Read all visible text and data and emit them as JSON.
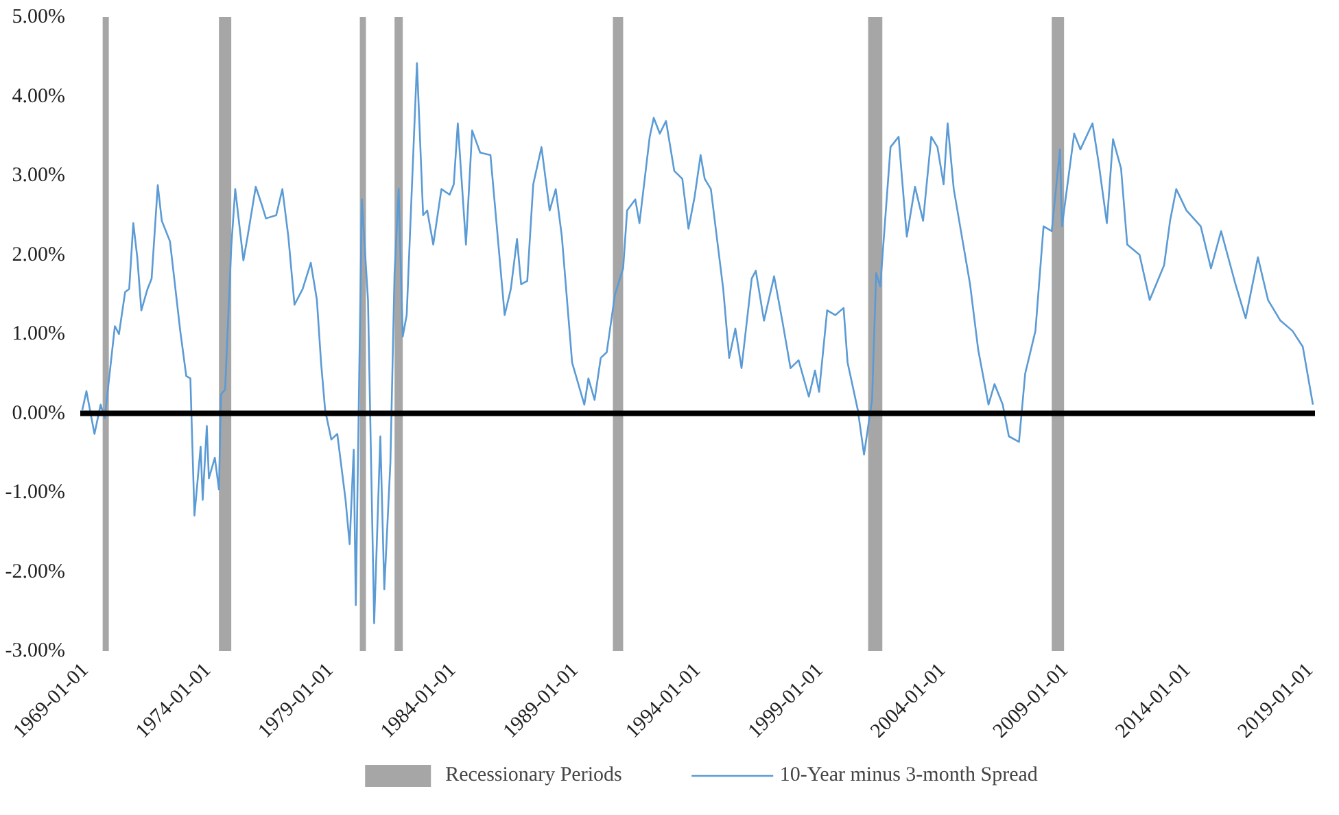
{
  "chart_data": {
    "type": "line",
    "x": [
      "1968-12",
      "1969-02",
      "1969-06",
      "1969-09",
      "1969-11",
      "1970-04",
      "1970-06",
      "1970-09",
      "1970-11",
      "1971-01",
      "1971-03",
      "1971-05",
      "1971-08",
      "1971-10",
      "1972-01",
      "1972-03",
      "1972-07",
      "1972-12",
      "1973-03",
      "1973-05",
      "1973-07",
      "1973-10",
      "1973-11",
      "1974-01",
      "1974-02",
      "1974-05",
      "1974-07",
      "1974-08",
      "1974-10",
      "1975-01",
      "1975-03",
      "1975-07",
      "1975-09",
      "1976-01",
      "1976-04",
      "1976-06",
      "1976-11",
      "1977-02",
      "1977-05",
      "1977-08",
      "1977-12",
      "1978-04",
      "1978-07",
      "1978-09",
      "1978-11",
      "1979-02",
      "1979-05",
      "1979-09",
      "1979-11",
      "1980-01",
      "1980-02",
      "1980-05",
      "1980-08",
      "1980-11",
      "1981-02",
      "1981-04",
      "1981-07",
      "1981-09",
      "1981-11",
      "1982-01",
      "1982-03",
      "1982-08",
      "1982-11",
      "1983-01",
      "1983-04",
      "1983-08",
      "1983-12",
      "1984-02",
      "1984-04",
      "1984-08",
      "1984-11",
      "1985-03",
      "1985-08",
      "1986-03",
      "1986-06",
      "1986-09",
      "1986-11",
      "1987-02",
      "1987-05",
      "1987-09",
      "1988-01",
      "1988-04",
      "1988-07",
      "1988-12",
      "1989-06",
      "1989-08",
      "1989-11",
      "1990-02",
      "1990-05",
      "1990-09",
      "1991-01",
      "1991-03",
      "1991-07",
      "1991-09",
      "1992-02",
      "1992-04",
      "1992-07",
      "1992-10",
      "1993-02",
      "1993-06",
      "1993-09",
      "1993-12",
      "1994-03",
      "1994-05",
      "1994-08",
      "1995-02",
      "1995-05",
      "1995-08",
      "1995-11",
      "1996-04",
      "1996-06",
      "1996-10",
      "1997-03",
      "1997-07",
      "1997-11",
      "1998-03",
      "1998-08",
      "1998-11",
      "1999-01",
      "1999-05",
      "1999-09",
      "2000-01",
      "2000-03",
      "2000-08",
      "2000-11",
      "2001-03",
      "2001-05",
      "2001-07",
      "2001-12",
      "2002-04",
      "2002-08",
      "2002-12",
      "2003-04",
      "2003-08",
      "2003-11",
      "2004-02",
      "2004-04",
      "2004-07",
      "2005-03",
      "2005-07",
      "2005-12",
      "2006-03",
      "2006-07",
      "2006-10",
      "2007-03",
      "2007-06",
      "2007-11",
      "2008-03",
      "2008-07",
      "2008-11",
      "2008-12",
      "2009-06",
      "2009-09",
      "2010-03",
      "2010-06",
      "2010-10",
      "2011-01",
      "2011-05",
      "2011-08",
      "2012-02",
      "2012-07",
      "2013-02",
      "2013-05",
      "2013-08",
      "2014-01",
      "2014-08",
      "2015-01",
      "2015-06",
      "2016-01",
      "2016-06",
      "2016-12",
      "2017-05",
      "2017-11",
      "2018-05",
      "2018-10",
      "2019-03"
    ],
    "series": [
      {
        "name": "10-Year minus 3-month Spread",
        "color": "#5b9bd5",
        "values": [
          0.04,
          0.28,
          -0.26,
          0.11,
          -0.06,
          1.1,
          1.0,
          1.53,
          1.57,
          2.4,
          1.97,
          1.3,
          1.57,
          1.7,
          2.88,
          2.43,
          2.17,
          1.04,
          0.47,
          0.44,
          -1.29,
          -0.42,
          -1.09,
          -0.16,
          -0.82,
          -0.56,
          -0.96,
          0.24,
          0.3,
          2.1,
          2.83,
          1.93,
          2.23,
          2.86,
          2.63,
          2.46,
          2.5,
          2.83,
          2.23,
          1.37,
          1.57,
          1.9,
          1.43,
          0.64,
          0.04,
          -0.33,
          -0.26,
          -1.09,
          -1.65,
          -0.46,
          -2.42,
          2.7,
          1.43,
          -2.65,
          -0.29,
          -2.22,
          -0.62,
          1.77,
          2.83,
          0.97,
          1.24,
          4.42,
          2.5,
          2.56,
          2.13,
          2.83,
          2.76,
          2.89,
          3.66,
          2.13,
          3.57,
          3.29,
          3.26,
          1.24,
          1.57,
          2.2,
          1.63,
          1.67,
          2.89,
          3.36,
          2.56,
          2.83,
          2.23,
          0.64,
          0.11,
          0.44,
          0.17,
          0.7,
          0.77,
          1.5,
          1.83,
          2.56,
          2.7,
          2.4,
          3.49,
          3.73,
          3.53,
          3.69,
          3.06,
          2.96,
          2.33,
          2.73,
          3.26,
          2.96,
          2.83,
          1.57,
          0.7,
          1.07,
          0.57,
          1.7,
          1.8,
          1.17,
          1.73,
          1.17,
          0.57,
          0.67,
          0.21,
          0.54,
          0.27,
          1.3,
          1.24,
          1.33,
          0.64,
          0.04,
          -0.52,
          0.17,
          1.77,
          1.6,
          3.36,
          3.49,
          2.23,
          2.86,
          2.43,
          3.49,
          3.36,
          2.89,
          3.66,
          2.83,
          1.63,
          0.8,
          0.11,
          0.37,
          0.11,
          -0.29,
          -0.36,
          0.5,
          1.04,
          2.36,
          2.3,
          3.33,
          2.36,
          3.53,
          3.33,
          3.66,
          3.16,
          2.4,
          3.46,
          3.09,
          2.13,
          2.0,
          1.43,
          1.87,
          2.43,
          2.83,
          2.56,
          2.36,
          1.83,
          2.3,
          1.63,
          1.2,
          1.97,
          1.43,
          1.17,
          1.04,
          0.84,
          0.11
        ]
      }
    ],
    "xlim": [
      "1968-11",
      "2019-04"
    ],
    "xticks": [
      "1969-01-01",
      "1974-01-01",
      "1979-01-01",
      "1984-01-01",
      "1989-01-01",
      "1994-01-01",
      "1999-01-01",
      "2004-01-01",
      "2009-01-01",
      "2014-01-01",
      "2019-01-01"
    ],
    "ylim": [
      -3,
      5
    ],
    "yticks": [
      {
        "value": -3,
        "label": "-3.00%"
      },
      {
        "value": -2,
        "label": "-2.00%"
      },
      {
        "value": -1,
        "label": "-1.00%"
      },
      {
        "value": 0,
        "label": "0.00%"
      },
      {
        "value": 1,
        "label": "1.00%"
      },
      {
        "value": 2,
        "label": "2.00%"
      },
      {
        "value": 3,
        "label": "3.00%"
      },
      {
        "value": 4,
        "label": "4.00%"
      },
      {
        "value": 5,
        "label": "5.00%"
      }
    ],
    "bands": [
      {
        "axis": "x",
        "from": "1969-10",
        "to": "1970-01",
        "label": "Recessionary Periods",
        "color": "#a6a6a6"
      },
      {
        "axis": "x",
        "from": "1974-07",
        "to": "1975-01",
        "color": "#a6a6a6"
      },
      {
        "axis": "x",
        "from": "1980-04",
        "to": "1980-07",
        "color": "#a6a6a6"
      },
      {
        "axis": "x",
        "from": "1981-09",
        "to": "1982-01",
        "color": "#a6a6a6"
      },
      {
        "axis": "x",
        "from": "1990-08",
        "to": "1991-01",
        "color": "#a6a6a6"
      },
      {
        "axis": "x",
        "from": "2001-01",
        "to": "2001-08",
        "color": "#a6a6a6"
      },
      {
        "axis": "x",
        "from": "2008-07",
        "to": "2009-01",
        "color": "#a6a6a6"
      }
    ],
    "ref_lines": [
      {
        "axis": "y",
        "value": 0,
        "color": "#000000"
      }
    ],
    "grid": false,
    "legend": "bottom",
    "marker": "none",
    "line_style": "solid"
  }
}
